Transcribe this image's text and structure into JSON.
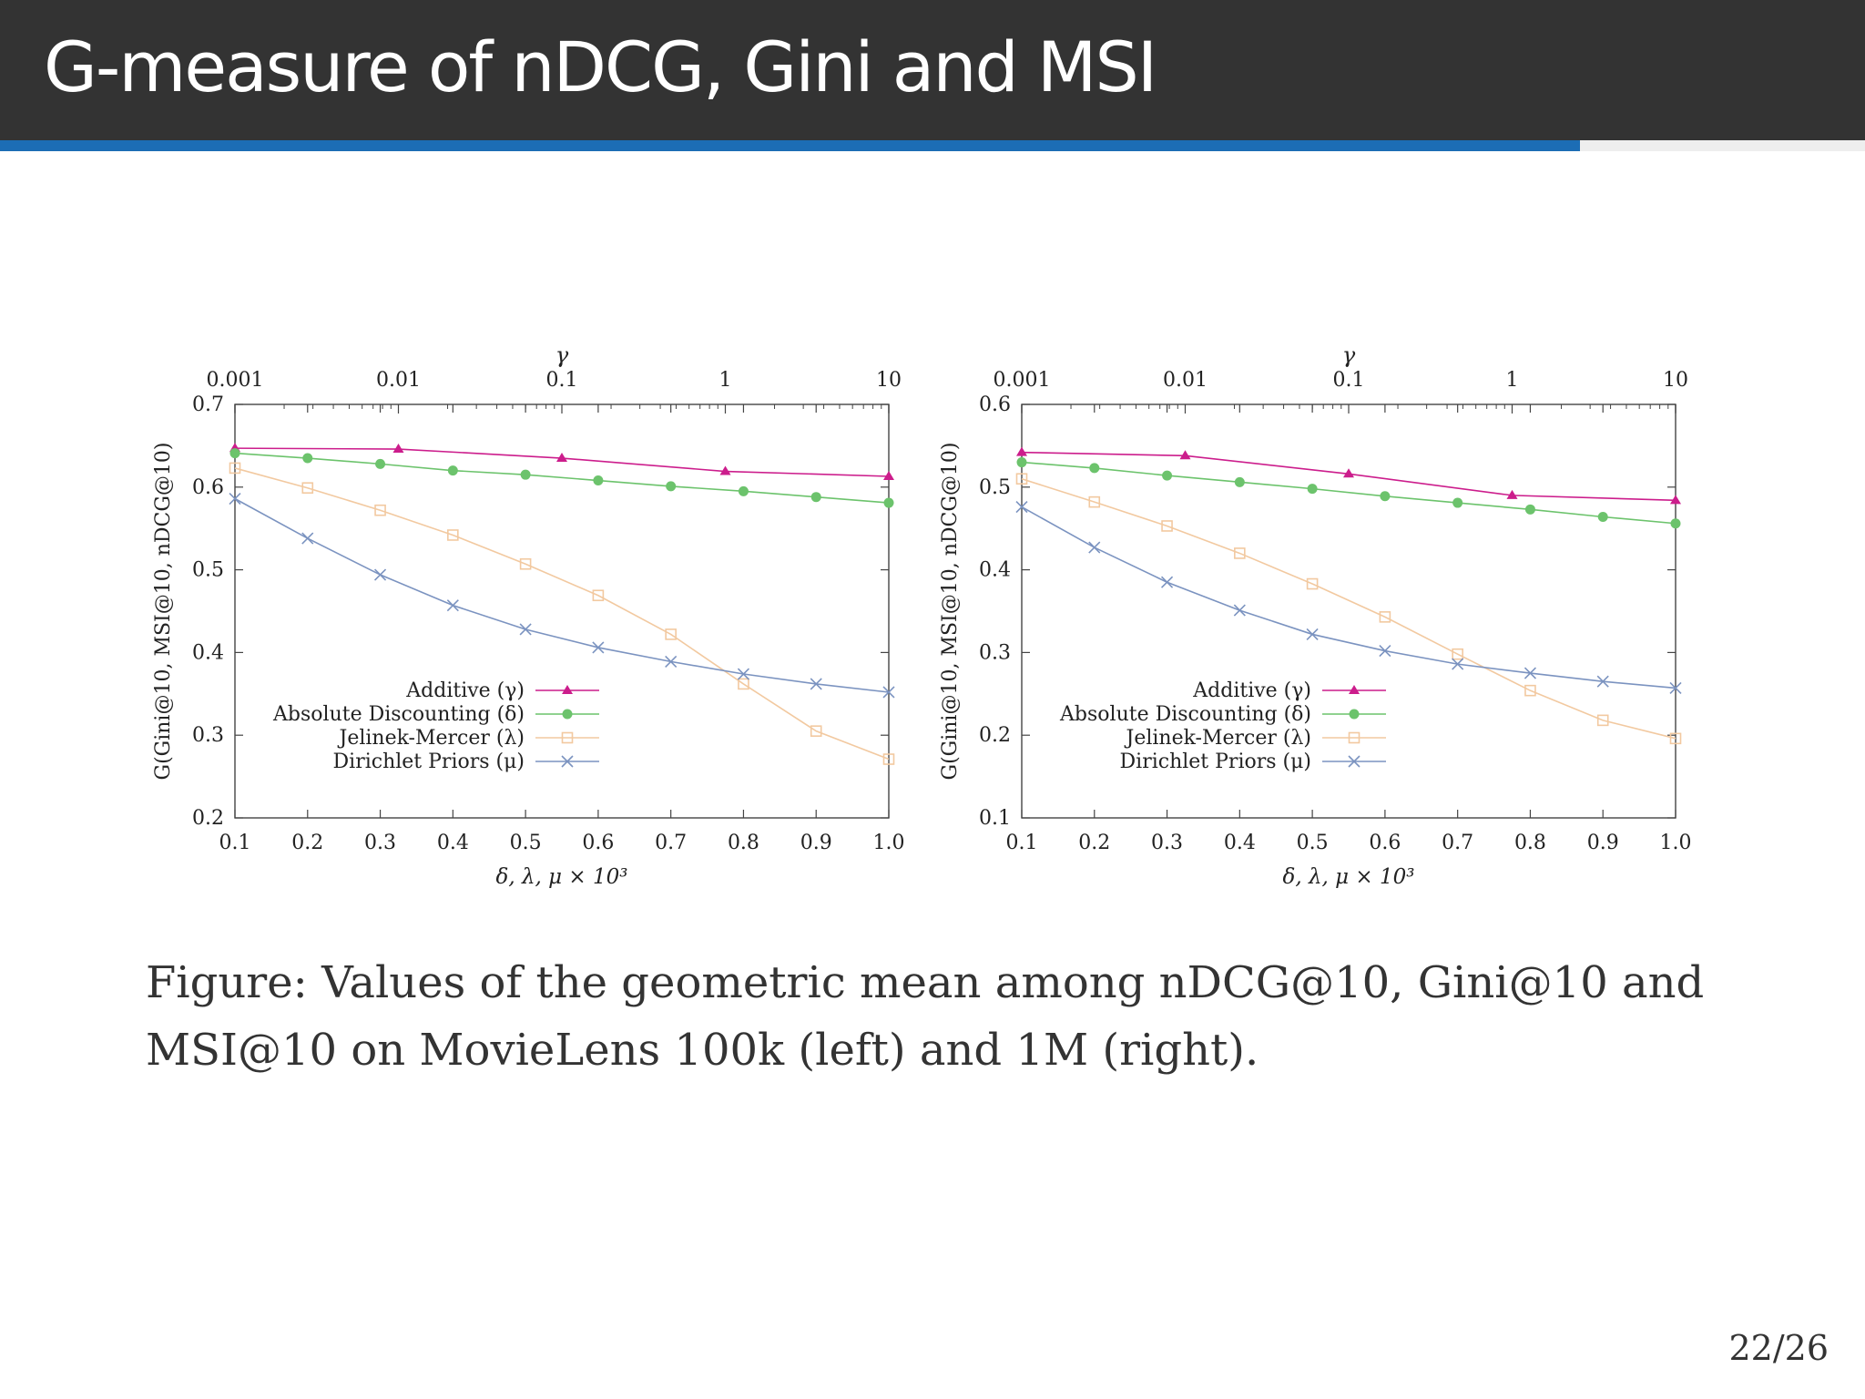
{
  "slide": {
    "title": "G-measure of nDCG, Gini and MSI",
    "caption": "Figure:  Values of the geometric mean among nDCG@10, Gini@10 and MSI@10 on MovieLens 100k (left) and 1M (right).",
    "page": "22/26",
    "progress": 0.847
  },
  "colors": {
    "header_bg": "#333333",
    "progress": "#1c6db5",
    "additive": "#cc1d8c",
    "absolute": "#6cc36c",
    "jelinek": "#f2c9a0",
    "dirichlet": "#7b93c0"
  },
  "chart_data": [
    {
      "type": "line",
      "xlabel": "δ, λ, μ × 10³",
      "ylabel": "G(Gini@10, MSI@10, nDCG@10)",
      "top_label": "γ",
      "xlim": [
        0.1,
        1.0
      ],
      "ylim": [
        0.2,
        0.7
      ],
      "x_ticks": [
        "0.1",
        "0.2",
        "0.3",
        "0.4",
        "0.5",
        "0.6",
        "0.7",
        "0.8",
        "0.9",
        "1.0"
      ],
      "y_ticks": [
        "0.2",
        "0.3",
        "0.4",
        "0.5",
        "0.6",
        "0.7"
      ],
      "top_ticks": [
        "0.001",
        "0.01",
        "0.1",
        "1",
        "10"
      ],
      "top_scale": "log",
      "top_lim": [
        0.001,
        10
      ],
      "grid": false,
      "legend": "bottom-left",
      "series": [
        {
          "name": "Additive (γ)",
          "axis": "top",
          "marker": "triangle",
          "color": "#cc1d8c",
          "x": [
            0.001,
            0.01,
            0.1,
            1,
            10
          ],
          "y": [
            0.647,
            0.646,
            0.635,
            0.619,
            0.613
          ]
        },
        {
          "name": "Absolute Discounting (δ)",
          "axis": "bottom",
          "marker": "circle",
          "color": "#6cc36c",
          "x": [
            0.1,
            0.2,
            0.3,
            0.4,
            0.5,
            0.6,
            0.7,
            0.8,
            0.9,
            1.0
          ],
          "y": [
            0.641,
            0.635,
            0.628,
            0.62,
            0.615,
            0.608,
            0.601,
            0.595,
            0.588,
            0.581
          ]
        },
        {
          "name": "Jelinek-Mercer (λ)",
          "axis": "bottom",
          "marker": "square",
          "color": "#f2c9a0",
          "x": [
            0.1,
            0.2,
            0.3,
            0.4,
            0.5,
            0.6,
            0.7,
            0.8,
            0.9,
            1.0
          ],
          "y": [
            0.623,
            0.599,
            0.572,
            0.542,
            0.507,
            0.469,
            0.422,
            0.362,
            0.305,
            0.271
          ]
        },
        {
          "name": "Dirichlet Priors (μ)",
          "axis": "bottom",
          "marker": "cross",
          "color": "#7b93c0",
          "x": [
            0.1,
            0.2,
            0.3,
            0.4,
            0.5,
            0.6,
            0.7,
            0.8,
            0.9,
            1.0
          ],
          "y": [
            0.586,
            0.538,
            0.494,
            0.457,
            0.428,
            0.406,
            0.389,
            0.374,
            0.362,
            0.352
          ]
        }
      ]
    },
    {
      "type": "line",
      "xlabel": "δ, λ, μ × 10³",
      "ylabel": "G(Gini@10, MSI@10, nDCG@10)",
      "top_label": "γ",
      "xlim": [
        0.1,
        1.0
      ],
      "ylim": [
        0.1,
        0.6
      ],
      "x_ticks": [
        "0.1",
        "0.2",
        "0.3",
        "0.4",
        "0.5",
        "0.6",
        "0.7",
        "0.8",
        "0.9",
        "1.0"
      ],
      "y_ticks": [
        "0.1",
        "0.2",
        "0.3",
        "0.4",
        "0.5",
        "0.6"
      ],
      "top_ticks": [
        "0.001",
        "0.01",
        "0.1",
        "1",
        "10"
      ],
      "top_scale": "log",
      "top_lim": [
        0.001,
        10
      ],
      "grid": false,
      "legend": "bottom-left",
      "series": [
        {
          "name": "Additive (γ)",
          "axis": "top",
          "marker": "triangle",
          "color": "#cc1d8c",
          "x": [
            0.001,
            0.01,
            0.1,
            1,
            10
          ],
          "y": [
            0.542,
            0.538,
            0.516,
            0.49,
            0.484
          ]
        },
        {
          "name": "Absolute Discounting (δ)",
          "axis": "bottom",
          "marker": "circle",
          "color": "#6cc36c",
          "x": [
            0.1,
            0.2,
            0.3,
            0.4,
            0.5,
            0.6,
            0.7,
            0.8,
            0.9,
            1.0
          ],
          "y": [
            0.53,
            0.523,
            0.514,
            0.506,
            0.498,
            0.489,
            0.481,
            0.473,
            0.464,
            0.456
          ]
        },
        {
          "name": "Jelinek-Mercer (λ)",
          "axis": "bottom",
          "marker": "square",
          "color": "#f2c9a0",
          "x": [
            0.1,
            0.2,
            0.3,
            0.4,
            0.5,
            0.6,
            0.7,
            0.8,
            0.9,
            1.0
          ],
          "y": [
            0.51,
            0.482,
            0.453,
            0.42,
            0.383,
            0.343,
            0.298,
            0.254,
            0.218,
            0.196
          ]
        },
        {
          "name": "Dirichlet Priors (μ)",
          "axis": "bottom",
          "marker": "cross",
          "color": "#7b93c0",
          "x": [
            0.1,
            0.2,
            0.3,
            0.4,
            0.5,
            0.6,
            0.7,
            0.8,
            0.9,
            1.0
          ],
          "y": [
            0.476,
            0.427,
            0.385,
            0.351,
            0.322,
            0.302,
            0.286,
            0.275,
            0.265,
            0.257
          ]
        }
      ]
    }
  ]
}
